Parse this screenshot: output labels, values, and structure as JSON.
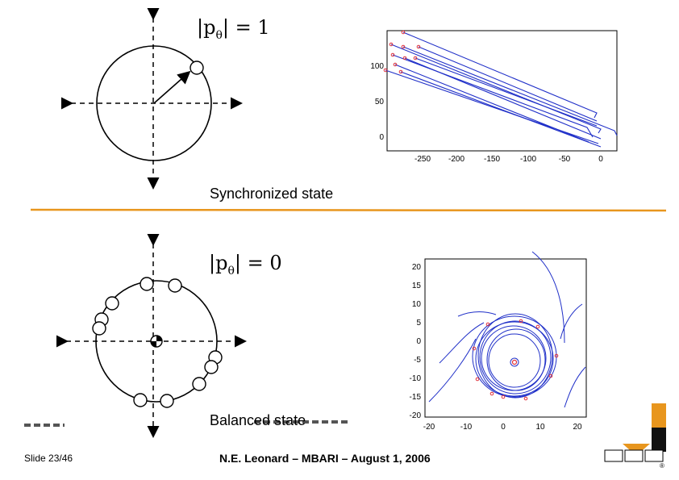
{
  "top": {
    "formula": {
      "lhs": "|p",
      "sub": "θ",
      "rhs": "| = 1"
    },
    "caption": "Synchronized state",
    "plot": {
      "x_ticks": [
        "-250",
        "-200",
        "-150",
        "-100",
        "-50",
        "0"
      ],
      "y_ticks": [
        "100",
        "50",
        "0"
      ]
    }
  },
  "bottom": {
    "formula": {
      "lhs": "|p",
      "sub": "θ",
      "rhs": "| = 0"
    },
    "caption": "Balanced state",
    "plot": {
      "x_ticks": [
        "-20",
        "-10",
        "0",
        "10",
        "20"
      ],
      "y_ticks": [
        "20",
        "15",
        "10",
        "5",
        "0",
        "-5",
        "-10",
        "-15",
        "-20"
      ]
    }
  },
  "footer": {
    "slide": "Slide 23/46",
    "credit": "N.E. Leonard – MBARI – August 1, 2006"
  },
  "colors": {
    "accent": "#e8961e",
    "trajectory": "#1f2fc8",
    "marker": "#e0303a"
  }
}
